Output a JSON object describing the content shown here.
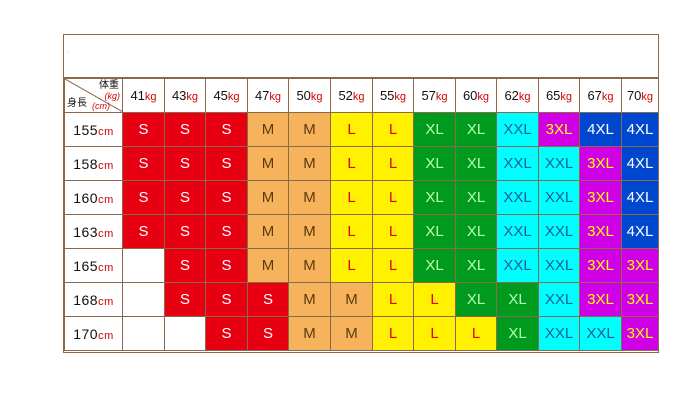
{
  "header": {
    "weight_label": "体重",
    "weight_unit": "(kg)",
    "height_label": "身長",
    "height_unit": "(cm)",
    "dot": "."
  },
  "weights": [
    {
      "value": "41",
      "unit": "kg"
    },
    {
      "value": "43",
      "unit": "kg"
    },
    {
      "value": "45",
      "unit": "kg"
    },
    {
      "value": "47",
      "unit": "kg"
    },
    {
      "value": "50",
      "unit": "kg"
    },
    {
      "value": "52",
      "unit": "kg"
    },
    {
      "value": "55",
      "unit": "kg"
    },
    {
      "value": "57",
      "unit": "kg"
    },
    {
      "value": "60",
      "unit": "kg"
    },
    {
      "value": "62",
      "unit": "kg"
    },
    {
      "value": "65",
      "unit": "kg"
    },
    {
      "value": "67",
      "unit": "kg"
    },
    {
      "value": "70",
      "unit": "kg"
    }
  ],
  "rows": [
    {
      "height": "155",
      "unit": "cm",
      "sizes": [
        "S",
        "S",
        "S",
        "M",
        "M",
        "L",
        "L",
        "XL",
        "XL",
        "XXL",
        "3XL",
        "4XL",
        "4XL"
      ]
    },
    {
      "height": "158",
      "unit": "cm",
      "sizes": [
        "S",
        "S",
        "S",
        "M",
        "M",
        "L",
        "L",
        "XL",
        "XL",
        "XXL",
        "XXL",
        "3XL",
        "4XL"
      ]
    },
    {
      "height": "160",
      "unit": "cm",
      "sizes": [
        "S",
        "S",
        "S",
        "M",
        "M",
        "L",
        "L",
        "XL",
        "XL",
        "XXL",
        "XXL",
        "3XL",
        "4XL"
      ]
    },
    {
      "height": "163",
      "unit": "cm",
      "sizes": [
        "S",
        "S",
        "S",
        "M",
        "M",
        "L",
        "L",
        "XL",
        "XL",
        "XXL",
        "XXL",
        "3XL",
        "4XL"
      ]
    },
    {
      "height": "165",
      "unit": "cm",
      "sizes": [
        "",
        "S",
        "S",
        "M",
        "M",
        "L",
        "L",
        "XL",
        "XL",
        "XXL",
        "XXL",
        "3XL",
        "3XL"
      ]
    },
    {
      "height": "168",
      "unit": "cm",
      "sizes": [
        "",
        "S",
        "S",
        "S",
        "M",
        "M",
        "L",
        "L",
        "XL",
        "XL",
        "XXL",
        "3XL",
        "3XL"
      ]
    },
    {
      "height": "170",
      "unit": "cm",
      "sizes": [
        "",
        "",
        "S",
        "S",
        "M",
        "M",
        "L",
        "L",
        "L",
        "XL",
        "XXL",
        "XXL",
        "3XL"
      ]
    }
  ]
}
